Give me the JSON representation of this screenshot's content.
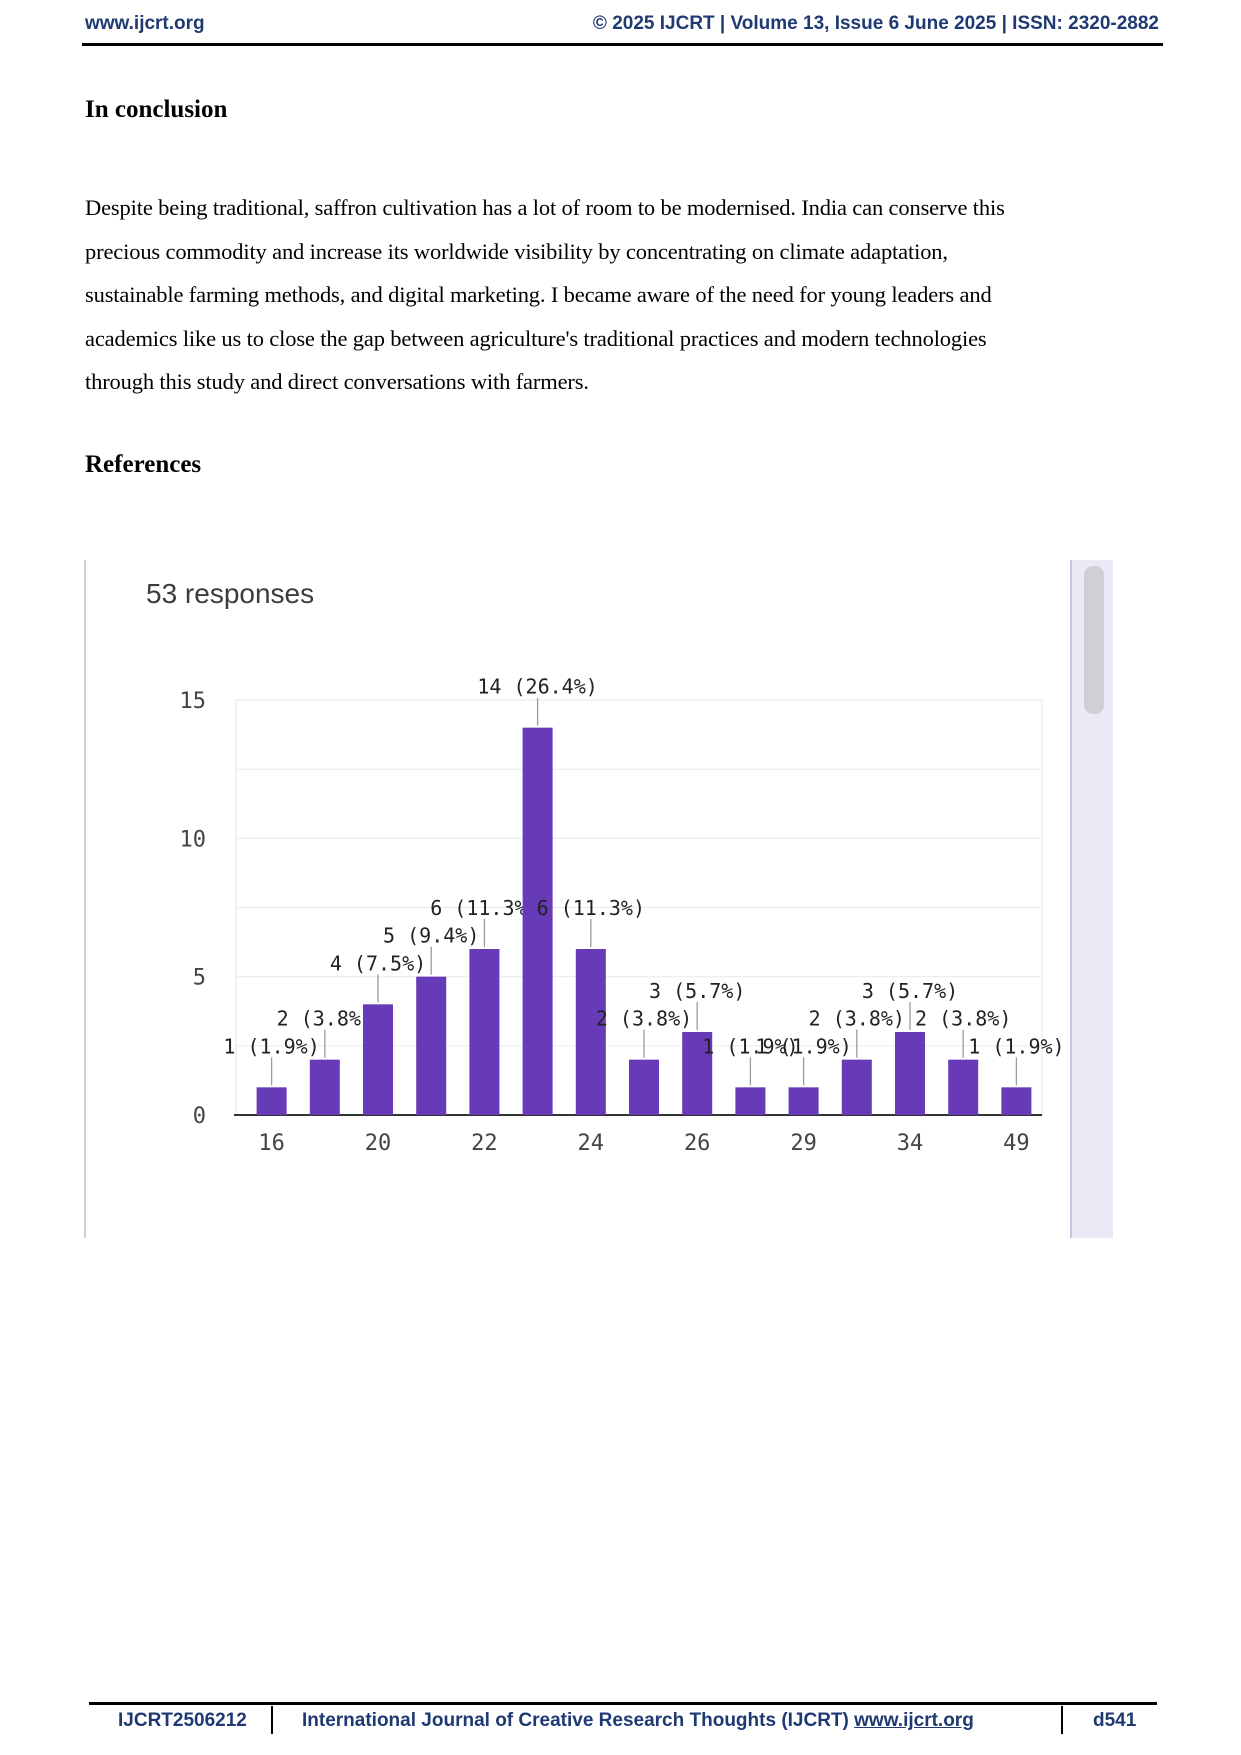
{
  "header": {
    "left": "www.ijcrt.org",
    "right": "© 2025 IJCRT | Volume 13, Issue 6 June 2025 | ISSN: 2320-2882"
  },
  "conclusion": {
    "heading": "In conclusion",
    "lines": [
      "Despite being traditional, saffron cultivation has a lot of room to be modernised. India can conserve this",
      "precious commodity and increase its worldwide visibility by concentrating on climate adaptation,",
      "sustainable farming methods, and digital marketing. I became aware of the need for young leaders and",
      "academics like us to close the gap between agriculture's traditional practices and modern technologies",
      "through this study and direct conversations with farmers."
    ]
  },
  "references": {
    "heading": "References"
  },
  "figure": {
    "responses": "53 responses"
  },
  "chart_data": {
    "type": "bar",
    "ylim": [
      0,
      15
    ],
    "y_ticks": [
      "0",
      "5",
      "10",
      "15"
    ],
    "x_tick_labels": [
      "16",
      "20",
      "22",
      "24",
      "26",
      "29",
      "34",
      "49"
    ],
    "values": [
      1,
      2,
      4,
      5,
      6,
      14,
      6,
      2,
      3,
      1,
      1,
      2,
      3,
      2,
      1
    ],
    "data_labels": [
      "1 (1.9%)",
      "2 (3.8%)",
      "4 (7.5%)",
      "5 (9.4%)",
      "6 (11.3%)",
      "14 (26.4%)",
      "6 (11.3%)",
      "2 (3.8%)",
      "3 (5.7%)",
      "1 (1.9%)",
      "1 (1.9%)",
      "2 (3.8%)",
      "3 (5.7%)",
      "2 (3.8%)",
      "1 (1.9%)"
    ],
    "bar_color": "#673ab7",
    "grid": true
  },
  "footer": {
    "id": "IJCRT2506212",
    "journal": "International Journal of Creative Research Thoughts (IJCRT)",
    "url": "www.ijcrt.org",
    "page": "d541"
  }
}
